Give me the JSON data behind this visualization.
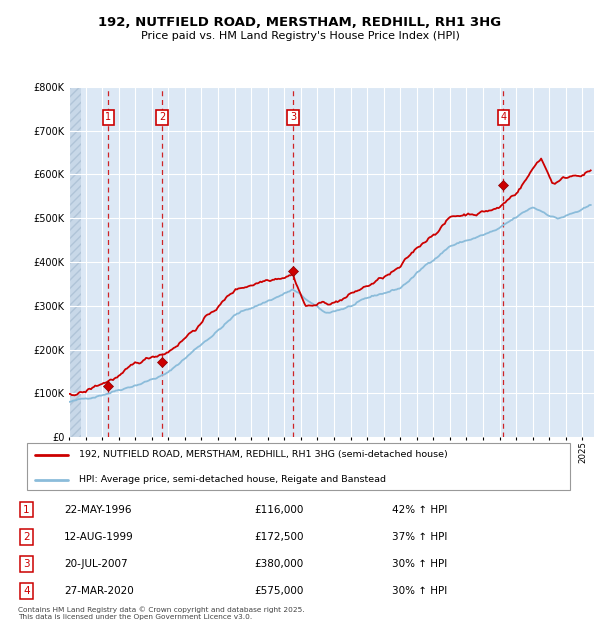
{
  "title": "192, NUTFIELD ROAD, MERSTHAM, REDHILL, RH1 3HG",
  "subtitle": "Price paid vs. HM Land Registry's House Price Index (HPI)",
  "hpi_label": "HPI: Average price, semi-detached house, Reigate and Banstead",
  "property_label": "192, NUTFIELD ROAD, MERSTHAM, REDHILL, RH1 3HG (semi-detached house)",
  "red_color": "#cc0000",
  "blue_color": "#8bbcda",
  "background_chart": "#dce8f5",
  "background_hatch_color": "#c8d8e8",
  "grid_color": "#ffffff",
  "transactions": [
    {
      "num": 1,
      "date": "22-MAY-1996",
      "year": 1996.38,
      "price": 116000,
      "hpi_pct": "42% ↑ HPI"
    },
    {
      "num": 2,
      "date": "12-AUG-1999",
      "year": 1999.62,
      "price": 172500,
      "hpi_pct": "37% ↑ HPI"
    },
    {
      "num": 3,
      "date": "20-JUL-2007",
      "year": 2007.54,
      "price": 380000,
      "hpi_pct": "30% ↑ HPI"
    },
    {
      "num": 4,
      "date": "27-MAR-2020",
      "year": 2020.23,
      "price": 575000,
      "hpi_pct": "30% ↑ HPI"
    }
  ],
  "footer": "Contains HM Land Registry data © Crown copyright and database right 2025.\nThis data is licensed under the Open Government Licence v3.0.",
  "ylim": [
    0,
    800000
  ],
  "yticks": [
    0,
    100000,
    200000,
    300000,
    400000,
    500000,
    600000,
    700000,
    800000
  ],
  "xlim_start": 1994.0,
  "xlim_end": 2025.7
}
